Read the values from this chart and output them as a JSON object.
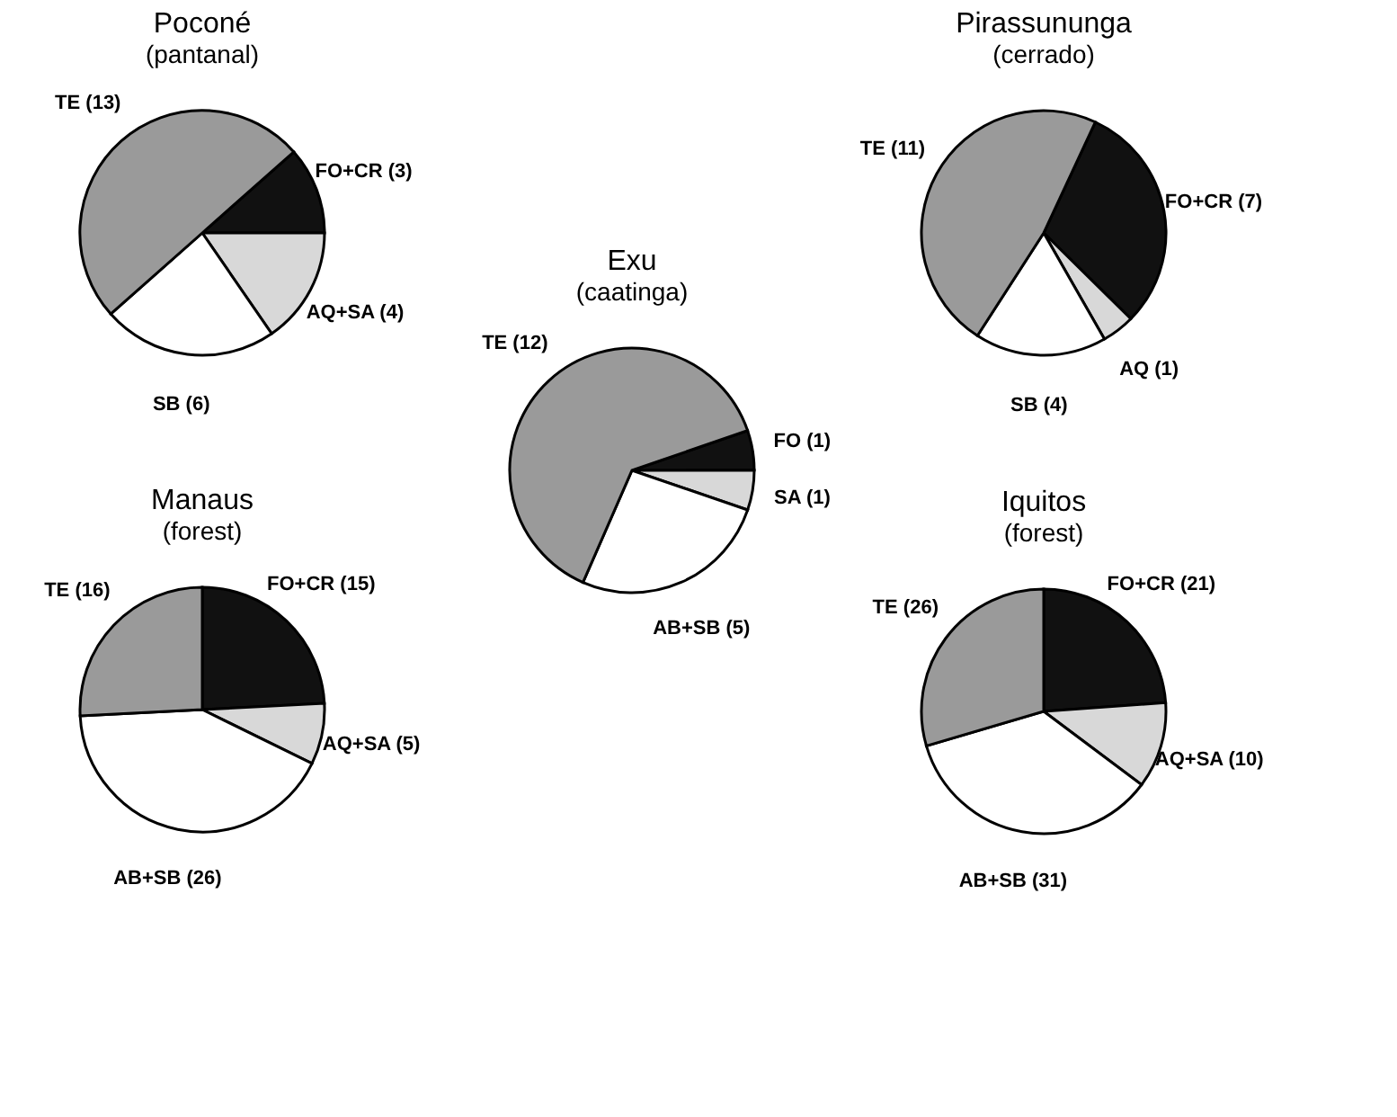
{
  "chart_data": [
    {
      "type": "pie",
      "title": "Poconé",
      "subtitle": "(pantanal)",
      "categories": [
        "FO+CR (3)",
        "AQ+SA (4)",
        "SB (6)",
        "TE (13)"
      ],
      "values": [
        3,
        4,
        6,
        13
      ],
      "colors": [
        "#111111",
        "#d8d8d8",
        "#ffffff",
        "#9a9a9a"
      ]
    },
    {
      "type": "pie",
      "title": "Pirassununga",
      "subtitle": "(cerrado)",
      "categories": [
        "FO+CR (7)",
        "AQ (1)",
        "SB (4)",
        "TE (11)"
      ],
      "values": [
        7,
        1,
        4,
        11
      ],
      "colors": [
        "#111111",
        "#d8d8d8",
        "#ffffff",
        "#9a9a9a"
      ]
    },
    {
      "type": "pie",
      "title": "Exu",
      "subtitle": "(caatinga)",
      "categories": [
        "FO (1)",
        "SA (1)",
        "AB+SB (5)",
        "TE (12)"
      ],
      "values": [
        1,
        1,
        5,
        12
      ],
      "colors": [
        "#111111",
        "#d8d8d8",
        "#ffffff",
        "#9a9a9a"
      ]
    },
    {
      "type": "pie",
      "title": "Manaus",
      "subtitle": "(forest)",
      "categories": [
        "FO+CR (15)",
        "AQ+SA (5)",
        "AB+SB (26)",
        "TE (16)"
      ],
      "values": [
        15,
        5,
        26,
        16
      ],
      "colors": [
        "#111111",
        "#d8d8d8",
        "#ffffff",
        "#9a9a9a"
      ]
    },
    {
      "type": "pie",
      "title": "Iquitos",
      "subtitle": "(forest)",
      "categories": [
        "FO+CR (21)",
        "AQ+SA (10)",
        "AB+SB (31)",
        "TE (26)"
      ],
      "values": [
        21,
        10,
        31,
        26
      ],
      "colors": [
        "#111111",
        "#d8d8d8",
        "#ffffff",
        "#9a9a9a"
      ]
    }
  ]
}
